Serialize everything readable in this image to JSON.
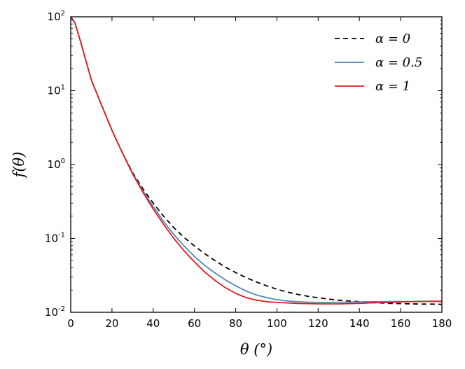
{
  "chart_data": {
    "type": "line",
    "title": "",
    "xlabel": "θ (°)",
    "ylabel": "f(θ)",
    "xlim": [
      0,
      180
    ],
    "ylim": [
      0.01,
      100
    ],
    "yscale": "log",
    "grid": false,
    "legend_position": "top-right",
    "x_ticks": [
      0,
      20,
      40,
      60,
      80,
      100,
      120,
      140,
      160,
      180
    ],
    "y_ticks": [
      {
        "value": 0.01,
        "base": "10",
        "exp": "-2"
      },
      {
        "value": 0.1,
        "base": "10",
        "exp": "-1"
      },
      {
        "value": 1,
        "base": "10",
        "exp": "0"
      },
      {
        "value": 10,
        "base": "10",
        "exp": "1"
      },
      {
        "value": 100,
        "base": "10",
        "exp": "2"
      }
    ],
    "series": [
      {
        "name": "α = 0",
        "color": "#000000",
        "style": "dashed",
        "x": [
          0,
          2,
          5,
          10,
          15,
          20,
          25,
          30,
          35,
          40,
          45,
          50,
          55,
          60,
          65,
          70,
          75,
          80,
          85,
          90,
          95,
          100,
          105,
          110,
          115,
          120,
          125,
          130,
          135,
          140,
          145,
          150,
          155,
          160,
          165,
          170,
          175,
          180
        ],
        "y": [
          100,
          83,
          44,
          14,
          6.3,
          2.9,
          1.45,
          0.78,
          0.47,
          0.3,
          0.2,
          0.14,
          0.103,
          0.079,
          0.062,
          0.05,
          0.041,
          0.0345,
          0.0295,
          0.0258,
          0.0228,
          0.0205,
          0.0188,
          0.0175,
          0.0165,
          0.0157,
          0.0151,
          0.0146,
          0.0142,
          0.0139,
          0.0136,
          0.0134,
          0.0132,
          0.0131,
          0.013,
          0.0129,
          0.0129,
          0.0128
        ]
      },
      {
        "name": "α = 0.5",
        "color": "#4f86b8",
        "style": "solid",
        "x": [
          0,
          2,
          5,
          10,
          15,
          20,
          25,
          30,
          35,
          40,
          45,
          50,
          55,
          60,
          65,
          70,
          75,
          80,
          85,
          90,
          95,
          100,
          105,
          110,
          115,
          120,
          125,
          130,
          135,
          140,
          145,
          150,
          155,
          160,
          165,
          170,
          175,
          180
        ],
        "y": [
          100,
          83,
          44,
          14,
          6.3,
          2.9,
          1.45,
          0.76,
          0.44,
          0.27,
          0.17,
          0.113,
          0.079,
          0.057,
          0.043,
          0.034,
          0.0275,
          0.0228,
          0.0194,
          0.0172,
          0.0158,
          0.0148,
          0.0142,
          0.0139,
          0.0137,
          0.0136,
          0.0136,
          0.0137,
          0.0137,
          0.0138,
          0.0139,
          0.0139,
          0.014,
          0.014,
          0.014,
          0.0141,
          0.0141,
          0.0141
        ]
      },
      {
        "name": "α = 1",
        "color": "#e41a1c",
        "style": "solid",
        "x": [
          0,
          2,
          5,
          10,
          15,
          20,
          25,
          30,
          35,
          40,
          45,
          50,
          55,
          60,
          65,
          70,
          75,
          80,
          85,
          90,
          95,
          100,
          105,
          110,
          115,
          120,
          125,
          130,
          135,
          140,
          145,
          150,
          155,
          160,
          165,
          170,
          175,
          180
        ],
        "y": [
          100,
          83,
          44,
          14,
          6.3,
          2.9,
          1.45,
          0.75,
          0.42,
          0.25,
          0.155,
          0.1,
          0.068,
          0.048,
          0.035,
          0.027,
          0.0215,
          0.018,
          0.0158,
          0.0146,
          0.0139,
          0.0136,
          0.0134,
          0.0132,
          0.0131,
          0.013,
          0.013,
          0.013,
          0.0131,
          0.0132,
          0.0134,
          0.0135,
          0.0136,
          0.0138,
          0.0139,
          0.014,
          0.0141,
          0.0141
        ]
      }
    ]
  }
}
